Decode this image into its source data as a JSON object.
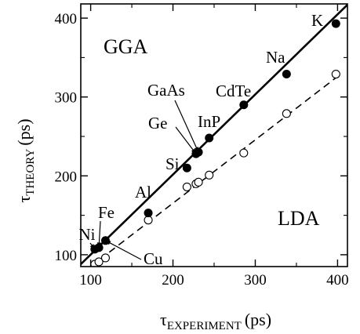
{
  "chart_data": {
    "type": "scatter",
    "xlabel": {
      "symbol": "τ",
      "subscript": "EXPERIMENT",
      "unit": "(ps)"
    },
    "ylabel": {
      "symbol": "τ",
      "subscript": "THEORY",
      "unit": "(ps)"
    },
    "xlim": [
      88,
      412
    ],
    "ylim": [
      85,
      418
    ],
    "xticks": [
      "100",
      "200",
      "300",
      "400"
    ],
    "yticks": [
      "100",
      "200",
      "300",
      "400"
    ],
    "grid": false,
    "region_labels": [
      "GGA",
      "LDA"
    ],
    "series": [
      {
        "marker": "filled-circle",
        "points": [
          {
            "x": 105,
            "y": 107,
            "label": "Ni"
          },
          {
            "x": 110,
            "y": 109,
            "label": "Fe"
          },
          {
            "x": 118,
            "y": 118,
            "label": "Cu"
          },
          {
            "x": 170,
            "y": 153,
            "label": "Al"
          },
          {
            "x": 217,
            "y": 210,
            "label": "Si"
          },
          {
            "x": 228,
            "y": 228,
            "label": "Ge"
          },
          {
            "x": 231,
            "y": 230,
            "label": "GaAs"
          },
          {
            "x": 244,
            "y": 248,
            "label": "InP"
          },
          {
            "x": 286,
            "y": 290,
            "label": "CdTe"
          },
          {
            "x": 338,
            "y": 329,
            "label": "Na"
          },
          {
            "x": 398,
            "y": 393,
            "label": "K"
          }
        ]
      },
      {
        "marker": "open-circle",
        "points": [
          {
            "x": 105,
            "y": 88
          },
          {
            "x": 110,
            "y": 91
          },
          {
            "x": 118,
            "y": 96
          },
          {
            "x": 170,
            "y": 144
          },
          {
            "x": 217,
            "y": 186
          },
          {
            "x": 228,
            "y": 190
          },
          {
            "x": 231,
            "y": 192
          },
          {
            "x": 244,
            "y": 201
          },
          {
            "x": 286,
            "y": 229
          },
          {
            "x": 338,
            "y": 279
          },
          {
            "x": 398,
            "y": 329
          }
        ]
      }
    ],
    "fit_lines": [
      {
        "style": "solid",
        "from": [
          88,
          88
        ],
        "to": [
          412,
          417
        ]
      },
      {
        "style": "dashed",
        "from": [
          100,
          85
        ],
        "to": [
          405,
          330
        ]
      }
    ]
  }
}
